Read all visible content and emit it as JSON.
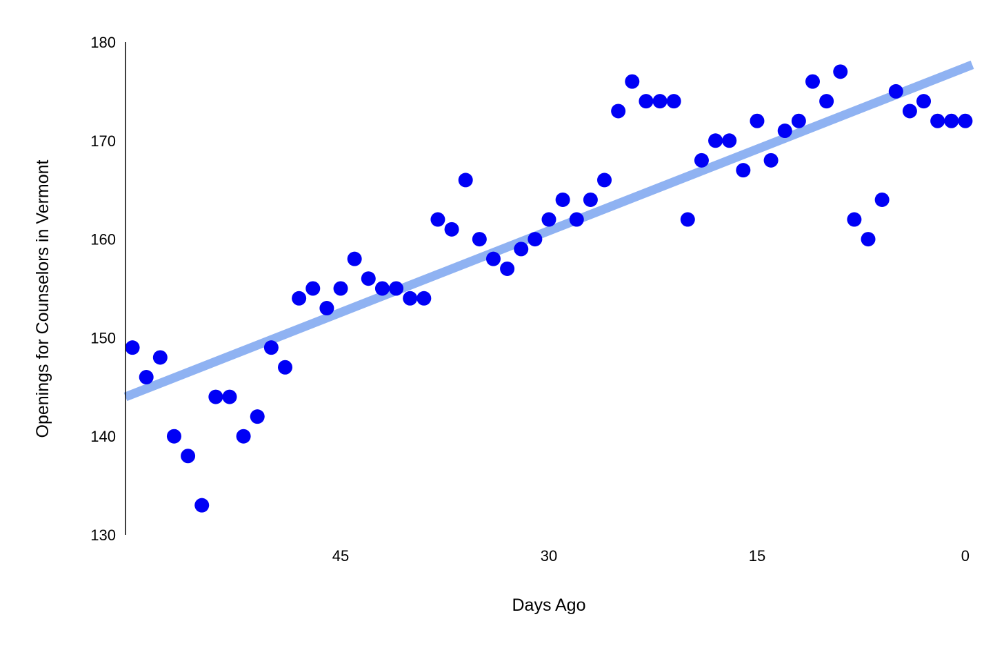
{
  "chart_data": {
    "type": "scatter",
    "title": "",
    "xlabel": "Days Ago",
    "ylabel": "Openings for Counselors in Vermont",
    "x_reversed": true,
    "xlim": [
      60.5,
      -0.5
    ],
    "ylim": [
      130,
      180
    ],
    "xticks": [
      45,
      30,
      15,
      0
    ],
    "yticks": [
      130,
      140,
      150,
      160,
      170,
      180
    ],
    "grid": false,
    "legend": "none",
    "colors": {
      "points": "#0000f5",
      "trendline": "#8fb2f2",
      "axis": "#000000"
    },
    "series": [
      {
        "x": [
          60,
          59,
          58,
          57,
          56,
          55,
          54,
          53,
          52,
          51,
          50,
          49,
          48,
          47,
          46,
          45,
          44,
          43,
          42,
          41,
          40,
          39,
          38,
          37,
          36,
          35,
          34,
          33,
          32,
          31,
          30,
          29,
          28,
          27,
          26,
          25,
          24,
          23,
          22,
          21,
          20,
          19,
          18,
          17,
          16,
          15,
          14,
          13,
          12,
          11,
          10,
          9,
          8,
          7,
          6,
          5,
          4,
          3,
          2,
          1,
          0
        ],
        "y": [
          149,
          146,
          148,
          140,
          138,
          133,
          144,
          144,
          140,
          142,
          149,
          147,
          154,
          155,
          153,
          155,
          158,
          156,
          155,
          155,
          154,
          154,
          162,
          161,
          166,
          160,
          158,
          157,
          159,
          160,
          162,
          164,
          162,
          164,
          166,
          173,
          176,
          174,
          174,
          174,
          162,
          168,
          170,
          170,
          167,
          172,
          168,
          171,
          172,
          176,
          174,
          177,
          162,
          160,
          164,
          175,
          173,
          174,
          172,
          172,
          172
        ]
      }
    ],
    "trendline": {
      "x": [
        60.5,
        -0.5
      ],
      "y": [
        144,
        177.7
      ]
    }
  }
}
